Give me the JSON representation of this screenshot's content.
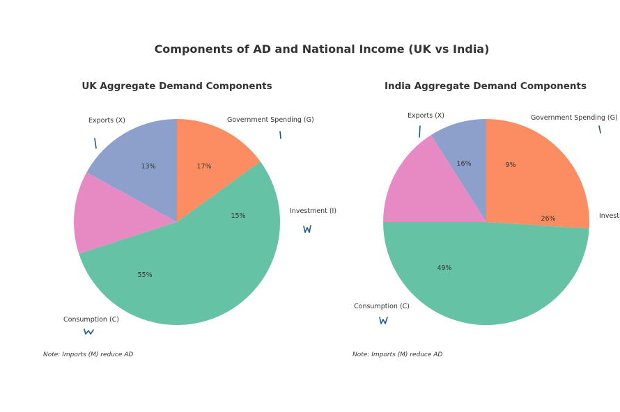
{
  "figure": {
    "title": "Components of AD and National Income (UK vs India)"
  },
  "chart_data": [
    {
      "type": "pie",
      "title": "UK Aggregate Demand Components",
      "start_angle_deg": 90,
      "direction": "counterclockwise",
      "slices": [
        {
          "label": "Government Spending (G)",
          "value": 17,
          "pct_label": "17%",
          "color": "#8da0cb"
        },
        {
          "label": "Exports (X)",
          "value": 13,
          "pct_label": "13%",
          "color": "#e78ac3"
        },
        {
          "label": "Consumption (C)",
          "value": 55,
          "pct_label": "55%",
          "color": "#66c2a5"
        },
        {
          "label": "Investment (I)",
          "value": 15,
          "pct_label": "15%",
          "color": "#fc8d62"
        }
      ],
      "note": "Note: Imports (M) reduce AD"
    },
    {
      "type": "pie",
      "title": "India Aggregate Demand Components",
      "start_angle_deg": 90,
      "direction": "counterclockwise",
      "slices": [
        {
          "label": "Government Spending (G)",
          "value": 9,
          "pct_label": "9%",
          "color": "#8da0cb"
        },
        {
          "label": "Exports (X)",
          "value": 16,
          "pct_label": "16%",
          "color": "#e78ac3"
        },
        {
          "label": "Consumption (C)",
          "value": 49,
          "pct_label": "49%",
          "color": "#66c2a5"
        },
        {
          "label": "Investment (I)",
          "value": 26,
          "pct_label": "26%",
          "color": "#fc8d62"
        }
      ],
      "note": "Note: Imports (M) reduce AD"
    }
  ]
}
